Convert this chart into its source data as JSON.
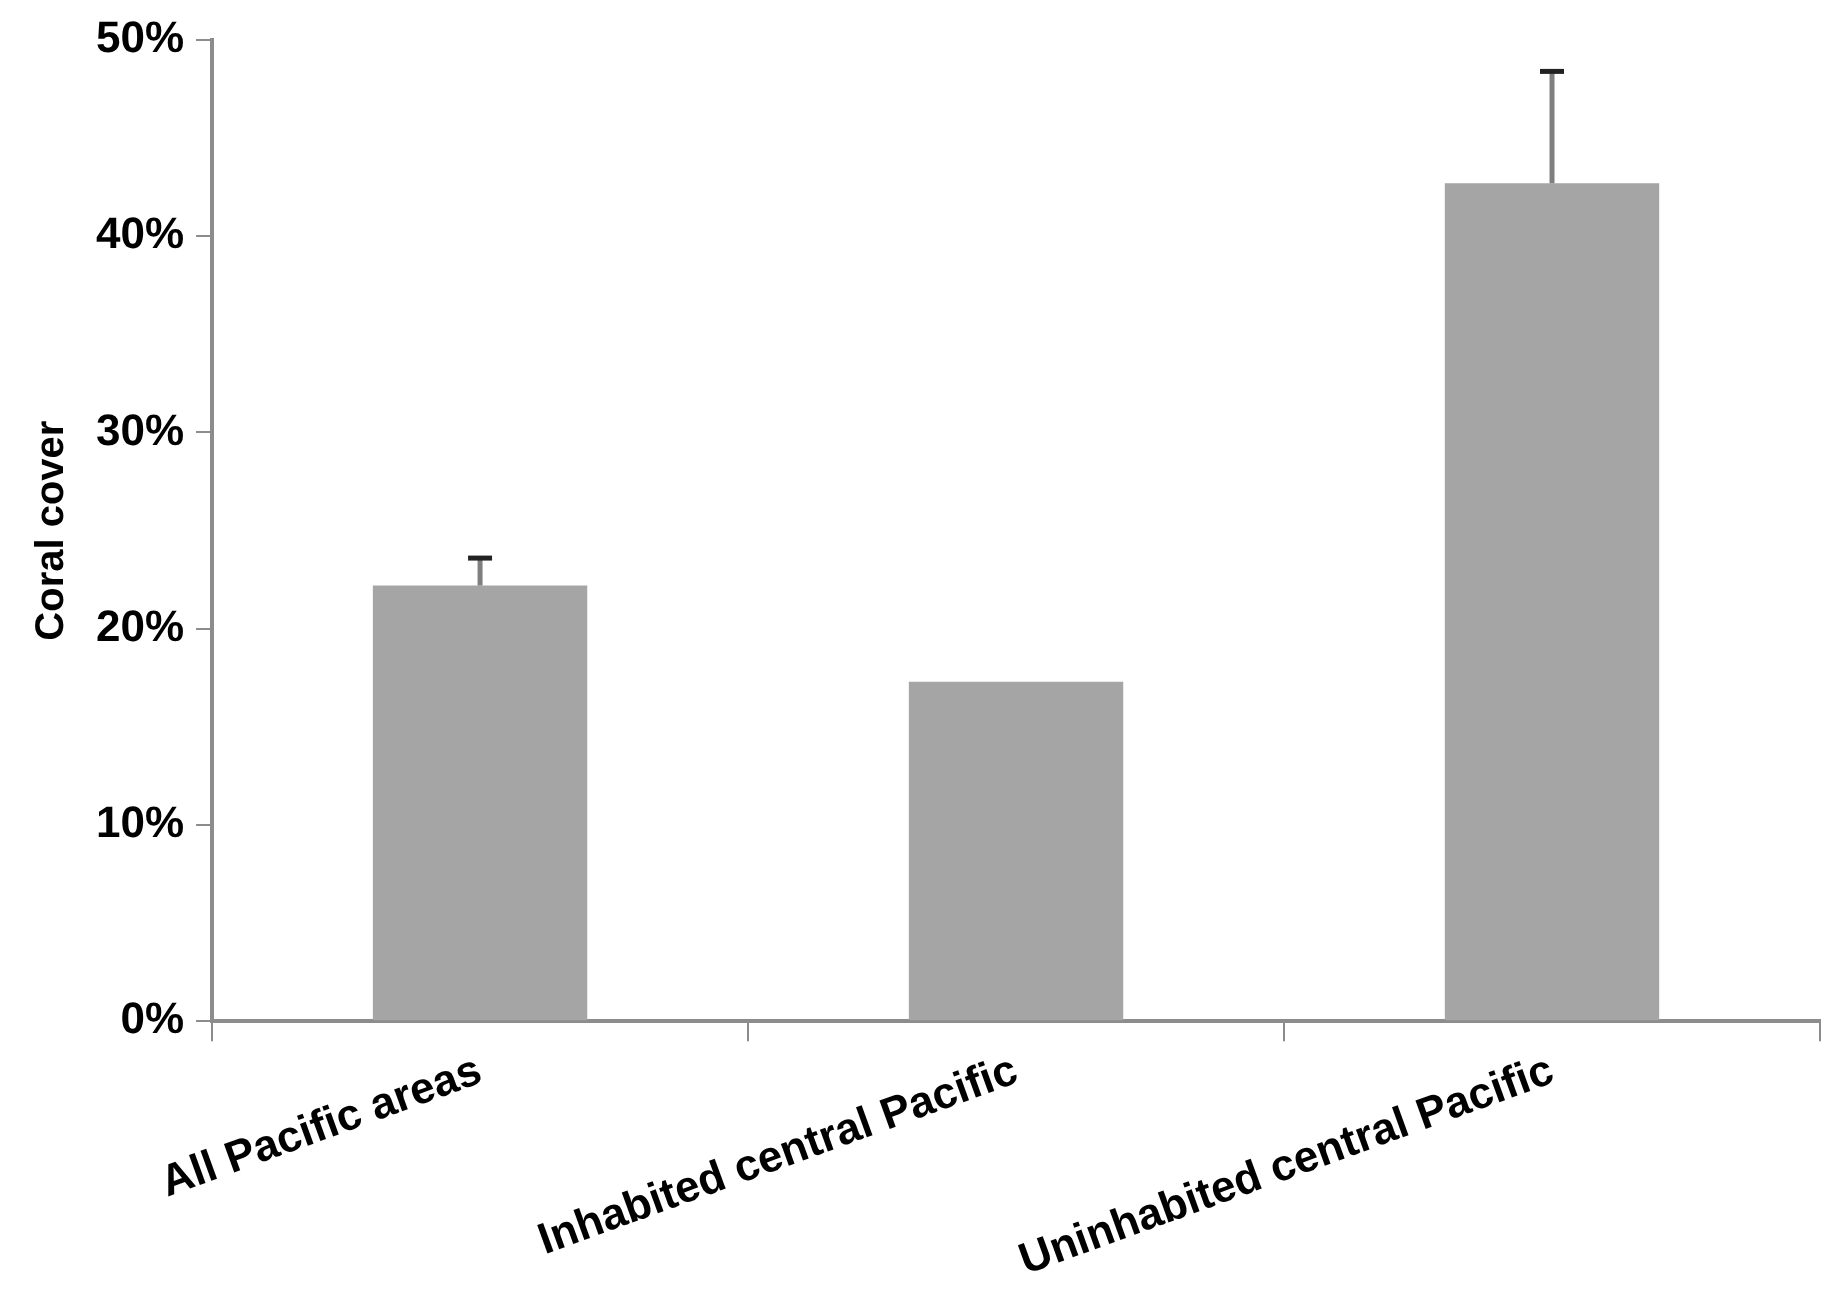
{
  "chart_data": {
    "type": "bar",
    "ylabel": "Coral cover",
    "categories": [
      "All Pacific areas",
      "Inhabited central Pacific",
      "Uninhabited central Pacific"
    ],
    "values": [
      22.2,
      17.3,
      42.7
    ],
    "errors": [
      [
        22.2,
        23.6
      ],
      null,
      [
        42.7,
        48.4
      ]
    ],
    "color": "#a5a5a5",
    "ylim": [
      0,
      50
    ],
    "yticks": [
      {
        "value": 0,
        "label": "0%"
      },
      {
        "value": 10,
        "label": "10%"
      },
      {
        "value": 20,
        "label": "20%"
      },
      {
        "value": 30,
        "label": "30%"
      },
      {
        "value": 40,
        "label": "40%"
      },
      {
        "value": 50,
        "label": "50%"
      }
    ],
    "grid": false,
    "legend": false
  }
}
